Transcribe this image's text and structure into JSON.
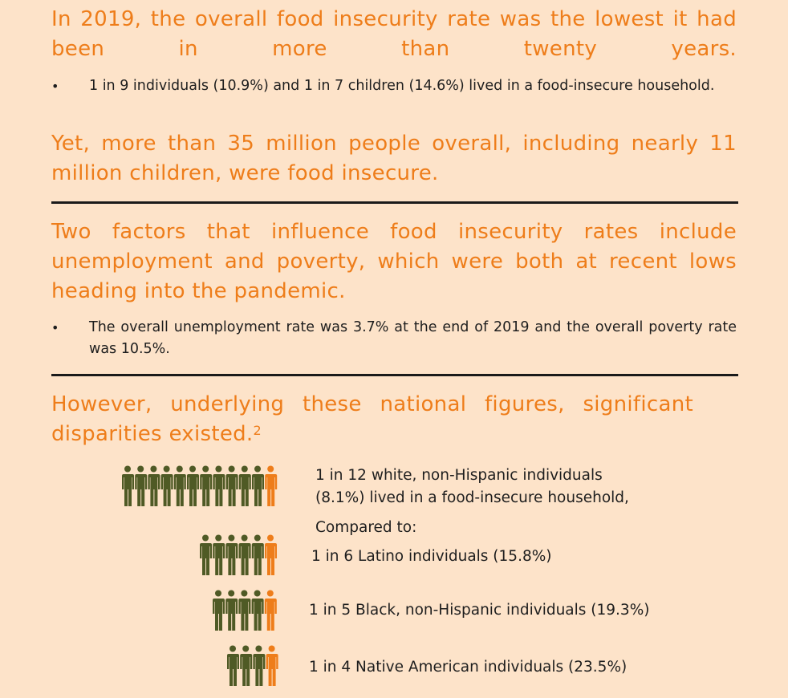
{
  "headings": {
    "h1": "In 2019, the overall food insecurity rate was the lowest it had been in more than twenty years.",
    "h2": "Yet, more than 35 million people overall, including nearly 11 million children, were food insecure.",
    "h3": "Two factors that influence food insecurity rates include unemployment and poverty, which were both at recent lows heading into the pandemic.",
    "h4": "However, underlying these national figures, significant disparities existed.",
    "h4_sup": "2"
  },
  "bullets": {
    "b1": "1 in 9 individuals (10.9%) and 1 in 7 children (14.6%) lived in a food-insecure household.",
    "b2": "The overall unemployment rate was 3.7% at the end of 2019 and the overall poverty rate was 10.5%."
  },
  "bullet_symbol": "•",
  "colors": {
    "background": "#fde3c9",
    "heading": "#ee7d1a",
    "person_neutral": "#4f5a25",
    "person_highlight": "#ee7d1a",
    "rule": "#1a1a1a"
  },
  "groups": [
    {
      "label_line1": "1 in 12 white, non-Hispanic individuals",
      "label_line2": "(8.1%) lived in a food-insecure household,",
      "total": 12,
      "highlighted": 1
    },
    {
      "label_line1": "1 in 6 Latino individuals (15.8%)",
      "total": 6,
      "highlighted": 1
    },
    {
      "label_line1": "1 in 5 Black, non-Hispanic individuals (19.3%)",
      "total": 5,
      "highlighted": 1
    },
    {
      "label_line1": "1 in 4 Native American individuals (23.5%)",
      "total": 4,
      "highlighted": 1
    }
  ],
  "compared_to": "Compared to:",
  "person_icon": "person-icon"
}
